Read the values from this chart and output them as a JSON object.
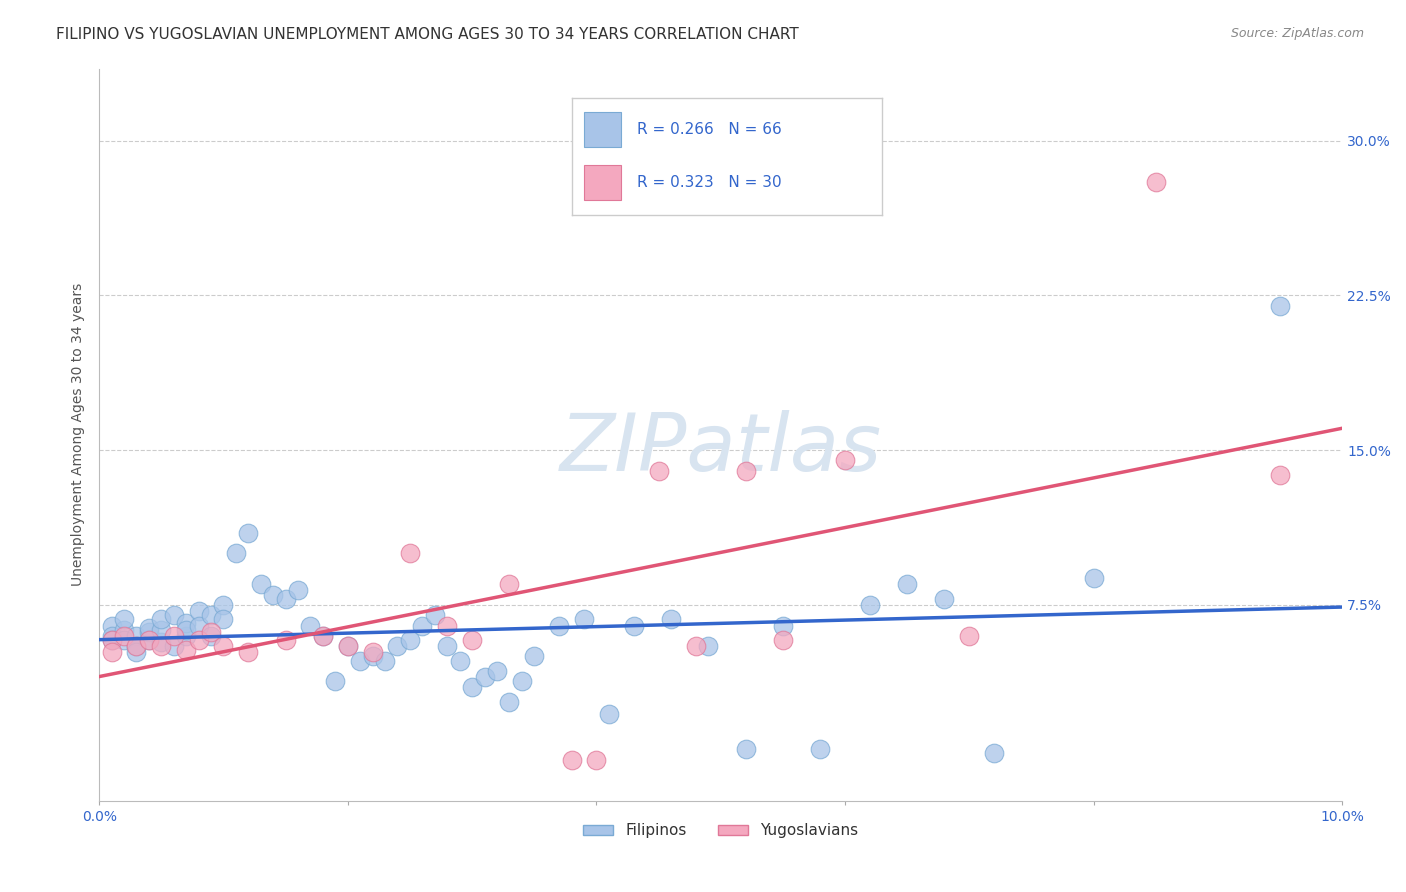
{
  "title": "FILIPINO VS YUGOSLAVIAN UNEMPLOYMENT AMONG AGES 30 TO 34 YEARS CORRELATION CHART",
  "source": "Source: ZipAtlas.com",
  "ylabel": "Unemployment Among Ages 30 to 34 years",
  "xlim": [
    0.0,
    0.1
  ],
  "ylim": [
    -0.02,
    0.335
  ],
  "filipino_color": "#a8c4e8",
  "filipino_edge": "#7aaad4",
  "yugoslavian_color": "#f4a8bf",
  "yugoslavian_edge": "#e07898",
  "line_filipino_color": "#3366cc",
  "line_yugoslav_color": "#e05575",
  "watermark_text": "ZIPatlas",
  "watermark_color": "#d8e4f0",
  "grid_color": "#cccccc",
  "background_color": "#ffffff",
  "title_fontsize": 11,
  "tick_fontsize": 10,
  "ylabel_fontsize": 10,
  "watermark_fontsize": 58,
  "legend_text_color": "#3366cc",
  "legend_box_color": "#cccccc",
  "tick_color": "#3366cc",
  "source_color": "#888888",
  "fil_x": [
    0.001,
    0.001,
    0.001,
    0.002,
    0.002,
    0.002,
    0.003,
    0.003,
    0.003,
    0.004,
    0.004,
    0.004,
    0.005,
    0.005,
    0.005,
    0.006,
    0.006,
    0.007,
    0.007,
    0.007,
    0.008,
    0.008,
    0.009,
    0.009,
    0.01,
    0.01,
    0.011,
    0.012,
    0.013,
    0.014,
    0.015,
    0.016,
    0.017,
    0.018,
    0.019,
    0.02,
    0.021,
    0.022,
    0.023,
    0.024,
    0.025,
    0.026,
    0.027,
    0.028,
    0.029,
    0.03,
    0.031,
    0.032,
    0.033,
    0.034,
    0.035,
    0.037,
    0.039,
    0.041,
    0.043,
    0.046,
    0.049,
    0.052,
    0.055,
    0.058,
    0.062,
    0.065,
    0.068,
    0.072,
    0.08,
    0.095
  ],
  "fil_y": [
    0.065,
    0.06,
    0.058,
    0.063,
    0.058,
    0.068,
    0.06,
    0.055,
    0.052,
    0.062,
    0.058,
    0.064,
    0.057,
    0.063,
    0.068,
    0.07,
    0.055,
    0.06,
    0.066,
    0.063,
    0.072,
    0.065,
    0.06,
    0.07,
    0.075,
    0.068,
    0.1,
    0.11,
    0.085,
    0.08,
    0.078,
    0.082,
    0.065,
    0.06,
    0.038,
    0.055,
    0.048,
    0.05,
    0.048,
    0.055,
    0.058,
    0.065,
    0.07,
    0.055,
    0.048,
    0.035,
    0.04,
    0.043,
    0.028,
    0.038,
    0.05,
    0.065,
    0.068,
    0.022,
    0.065,
    0.068,
    0.055,
    0.005,
    0.065,
    0.005,
    0.075,
    0.085,
    0.078,
    0.003,
    0.088,
    0.22
  ],
  "yug_x": [
    0.001,
    0.001,
    0.002,
    0.003,
    0.004,
    0.005,
    0.006,
    0.007,
    0.008,
    0.009,
    0.01,
    0.012,
    0.015,
    0.018,
    0.02,
    0.022,
    0.025,
    0.028,
    0.03,
    0.033,
    0.038,
    0.04,
    0.045,
    0.048,
    0.052,
    0.055,
    0.06,
    0.07,
    0.085,
    0.095
  ],
  "yug_y": [
    0.058,
    0.052,
    0.06,
    0.055,
    0.058,
    0.055,
    0.06,
    0.053,
    0.058,
    0.062,
    0.055,
    0.052,
    0.058,
    0.06,
    0.055,
    0.052,
    0.1,
    0.065,
    0.058,
    0.085,
    0.0,
    0.0,
    0.14,
    0.055,
    0.14,
    0.058,
    0.145,
    0.06,
    0.28,
    0.138
  ]
}
